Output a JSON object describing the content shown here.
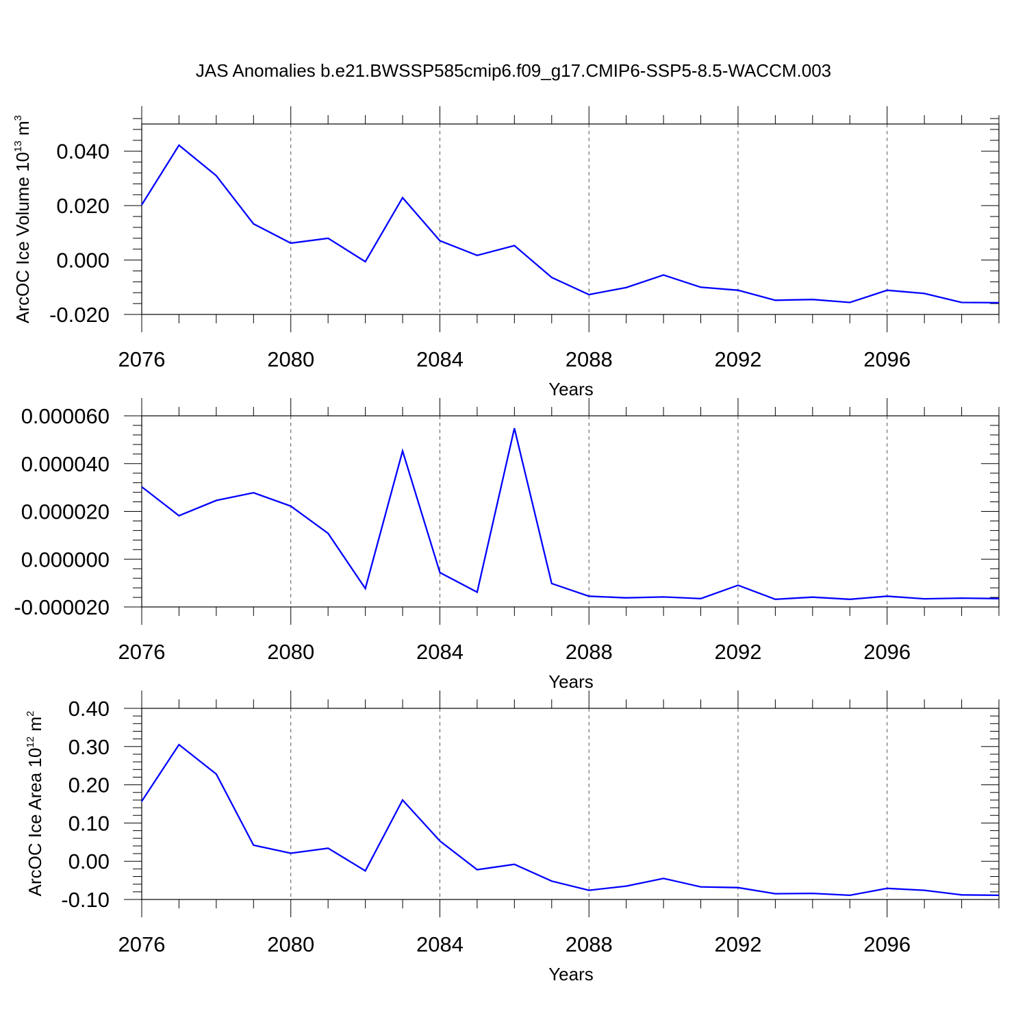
{
  "figure": {
    "title": "JAS Anomalies b.e21.BWSSP585cmip6.f09_g17.CMIP6-SSP5-8.5-WACCM.003"
  },
  "colors": {
    "line": "#0000ff",
    "axis": "#000000",
    "grid": "#555555",
    "background": "#ffffff"
  },
  "chart_data": [
    {
      "type": "line",
      "title": "JAS Anomalies b.e21.BWSSP585cmip6.f09_g17.CMIP6-SSP5-8.5-WACCM.003",
      "xlabel": "Years",
      "ylabel": "ArcOC Ice Volume 10",
      "ylabel_exponent": "13",
      "ylabel_unit": "m",
      "ylabel_unit_exponent": "3",
      "xlim": [
        2076,
        2099
      ],
      "ylim": [
        -0.02,
        0.05
      ],
      "yticks": [
        -0.02,
        0.0,
        0.02,
        0.04
      ],
      "ytick_labels": [
        "-0.020",
        "0.000",
        "0.020",
        "0.040"
      ],
      "xticks": [
        2076,
        2080,
        2084,
        2088,
        2092,
        2096
      ],
      "xtick_labels": [
        "2076",
        "2080",
        "2084",
        "2088",
        "2092",
        "2096"
      ],
      "grid": "vertical dashed at major x ticks",
      "x": [
        2076,
        2077,
        2078,
        2079,
        2080,
        2081,
        2082,
        2083,
        2084,
        2085,
        2086,
        2087,
        2088,
        2089,
        2090,
        2091,
        2092,
        2093,
        2094,
        2095,
        2096,
        2097,
        2098,
        2099
      ],
      "values": [
        0.0203,
        0.0422,
        0.031,
        0.0133,
        0.0062,
        0.008,
        -0.0006,
        0.0229,
        0.0071,
        0.0017,
        0.0053,
        -0.0064,
        -0.0127,
        -0.0101,
        -0.0055,
        -0.01,
        -0.0111,
        -0.0148,
        -0.0145,
        -0.0156,
        -0.0111,
        -0.0123,
        -0.0156,
        -0.0157
      ]
    },
    {
      "type": "line",
      "xlabel": "Years",
      "ylabel": "",
      "xlim": [
        2076,
        2099
      ],
      "ylim": [
        -2e-05,
        6e-05
      ],
      "yticks": [
        -2e-05,
        0.0,
        2e-05,
        4e-05,
        6e-05
      ],
      "ytick_labels": [
        "-0.000020",
        "0.000000",
        "0.000020",
        "0.000040",
        "0.000060"
      ],
      "xticks": [
        2076,
        2080,
        2084,
        2088,
        2092,
        2096
      ],
      "xtick_labels": [
        "2076",
        "2080",
        "2084",
        "2088",
        "2092",
        "2096"
      ],
      "grid": "vertical dashed at major x ticks",
      "x": [
        2076,
        2077,
        2078,
        2079,
        2080,
        2081,
        2082,
        2083,
        2084,
        2085,
        2086,
        2087,
        2088,
        2089,
        2090,
        2091,
        2092,
        2093,
        2094,
        2095,
        2096,
        2097,
        2098,
        2099
      ],
      "values": [
        3.03e-05,
        1.82e-05,
        2.46e-05,
        2.78e-05,
        2.22e-05,
        1.08e-05,
        -1.23e-05,
        4.53e-05,
        -5.6e-06,
        -1.38e-05,
        5.48e-05,
        -1.02e-05,
        -1.55e-05,
        -1.62e-05,
        -1.58e-05,
        -1.65e-05,
        -1.09e-05,
        -1.68e-05,
        -1.59e-05,
        -1.68e-05,
        -1.55e-05,
        -1.66e-05,
        -1.63e-05,
        -1.65e-05
      ]
    },
    {
      "type": "line",
      "xlabel": "Years",
      "ylabel": "ArcOC Ice Area 10",
      "ylabel_exponent": "12",
      "ylabel_unit": "m",
      "ylabel_unit_exponent": "2",
      "xlim": [
        2076,
        2099
      ],
      "ylim": [
        -0.1,
        0.4
      ],
      "yticks": [
        -0.1,
        0.0,
        0.1,
        0.2,
        0.3,
        0.4
      ],
      "ytick_labels": [
        "-0.10",
        "0.00",
        "0.10",
        "0.20",
        "0.30",
        "0.40"
      ],
      "xticks": [
        2076,
        2080,
        2084,
        2088,
        2092,
        2096
      ],
      "xtick_labels": [
        "2076",
        "2080",
        "2084",
        "2088",
        "2092",
        "2096"
      ],
      "grid": "vertical dashed at major x ticks",
      "x": [
        2076,
        2077,
        2078,
        2079,
        2080,
        2081,
        2082,
        2083,
        2084,
        2085,
        2086,
        2087,
        2088,
        2089,
        2090,
        2091,
        2092,
        2093,
        2094,
        2095,
        2096,
        2097,
        2098,
        2099
      ],
      "values": [
        0.157,
        0.305,
        0.228,
        0.042,
        0.021,
        0.034,
        -0.025,
        0.16,
        0.053,
        -0.022,
        -0.008,
        -0.052,
        -0.076,
        -0.065,
        -0.045,
        -0.067,
        -0.069,
        -0.085,
        -0.084,
        -0.089,
        -0.071,
        -0.076,
        -0.088,
        -0.089
      ]
    }
  ]
}
